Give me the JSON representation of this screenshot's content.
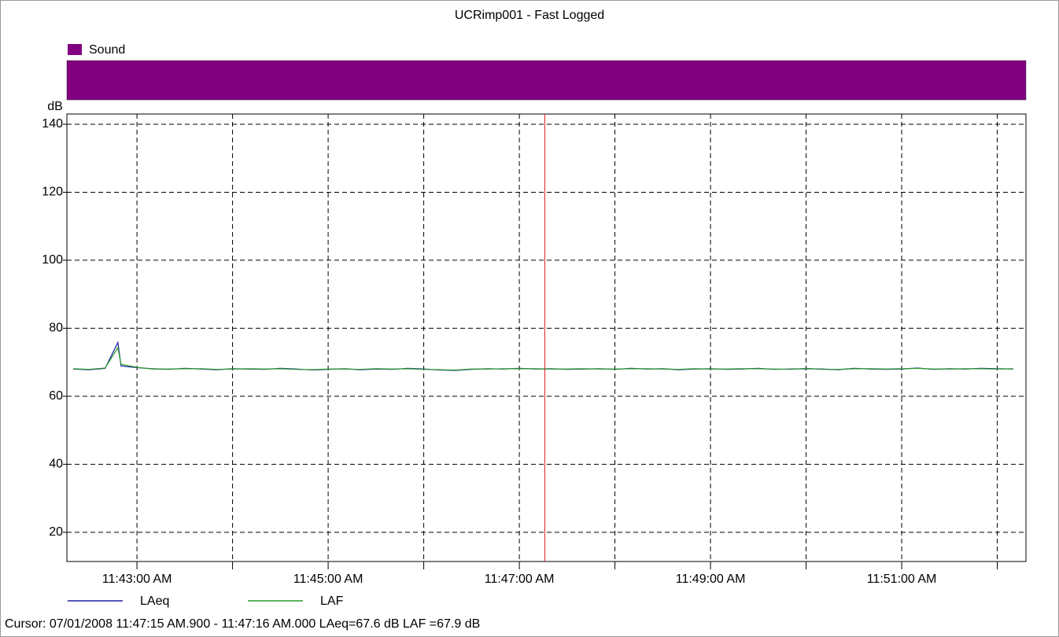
{
  "chart_data": {
    "type": "line",
    "title": "UCRimp001 - Fast Logged",
    "y_label": "dB",
    "x": [
      "11:42:20 AM",
      "11:42:30 AM",
      "11:42:40 AM",
      "11:42:48 AM",
      "11:42:50 AM",
      "11:43:00 AM",
      "11:43:10 AM",
      "11:43:20 AM",
      "11:43:30 AM",
      "11:43:40 AM",
      "11:43:50 AM",
      "11:44:00 AM",
      "11:44:10 AM",
      "11:44:20 AM",
      "11:44:30 AM",
      "11:44:40 AM",
      "11:44:50 AM",
      "11:45:00 AM",
      "11:45:10 AM",
      "11:45:20 AM",
      "11:45:30 AM",
      "11:45:40 AM",
      "11:45:50 AM",
      "11:46:00 AM",
      "11:46:10 AM",
      "11:46:20 AM",
      "11:46:30 AM",
      "11:46:40 AM",
      "11:46:50 AM",
      "11:47:00 AM",
      "11:47:10 AM",
      "11:47:20 AM",
      "11:47:30 AM",
      "11:47:40 AM",
      "11:47:50 AM",
      "11:48:00 AM",
      "11:48:10 AM",
      "11:48:20 AM",
      "11:48:30 AM",
      "11:48:40 AM",
      "11:48:50 AM",
      "11:49:00 AM",
      "11:49:10 AM",
      "11:49:20 AM",
      "11:49:30 AM",
      "11:49:40 AM",
      "11:49:50 AM",
      "11:50:00 AM",
      "11:50:10 AM",
      "11:50:20 AM",
      "11:50:30 AM",
      "11:50:40 AM",
      "11:50:50 AM",
      "11:51:00 AM",
      "11:51:10 AM",
      "11:51:20 AM",
      "11:51:30 AM",
      "11:51:40 AM",
      "11:51:50 AM",
      "11:52:00 AM",
      "11:52:10 AM"
    ],
    "series": [
      {
        "name": "LAeq",
        "color": "#1f1fa8",
        "values": [
          68.0,
          67.8,
          68.2,
          75.8,
          68.9,
          68.4,
          68.1,
          67.9,
          68.2,
          68.0,
          67.8,
          68.1,
          68.0,
          67.9,
          68.2,
          68.0,
          67.7,
          67.9,
          68.1,
          67.8,
          68.0,
          67.9,
          68.2,
          68.0,
          67.7,
          67.6,
          67.9,
          68.1,
          68.0,
          68.2,
          68.0,
          68.1,
          67.9,
          68.0,
          68.1,
          67.9,
          68.2,
          68.0,
          68.1,
          67.8,
          68.0,
          68.1,
          67.9,
          68.0,
          68.2,
          67.9,
          68.0,
          68.1,
          68.0,
          67.8,
          68.2,
          68.0,
          67.9,
          68.0,
          68.3,
          67.9,
          68.1,
          68.0,
          68.2,
          68.1,
          68.0
        ]
      },
      {
        "name": "LAF",
        "color": "#2a9a2a",
        "values": [
          68.1,
          67.9,
          68.3,
          74.3,
          69.4,
          68.5,
          68.0,
          68.0,
          68.1,
          68.1,
          67.9,
          68.0,
          68.1,
          68.0,
          68.1,
          67.9,
          67.8,
          68.0,
          68.0,
          67.9,
          68.1,
          68.0,
          68.1,
          67.9,
          67.8,
          67.7,
          68.0,
          68.0,
          68.1,
          68.1,
          68.1,
          68.0,
          68.0,
          68.1,
          68.0,
          68.0,
          68.1,
          68.1,
          68.0,
          67.9,
          68.1,
          68.0,
          68.0,
          68.1,
          68.1,
          68.0,
          67.9,
          68.2,
          67.9,
          67.9,
          68.1,
          68.1,
          68.0,
          68.1,
          68.2,
          68.0,
          68.0,
          68.1,
          68.1,
          68.0,
          68.1
        ]
      }
    ],
    "xlim": [
      "11:42:16 AM",
      "11:52:18 AM"
    ],
    "ylim": [
      11.4,
      143
    ],
    "xticks": [
      "11:43:00 AM",
      {
        "value": "11:44:00 AM",
        "label": null
      },
      "11:45:00 AM",
      {
        "value": "11:46:00 AM",
        "label": null
      },
      "11:47:00 AM",
      {
        "value": "11:48:00 AM",
        "label": null
      },
      "11:49:00 AM",
      {
        "value": "11:50:00 AM",
        "label": null
      },
      "11:51:00 AM",
      {
        "value": "11:52:00 AM",
        "label": null
      }
    ],
    "yticks": [
      20,
      40,
      60,
      80,
      100,
      120,
      140
    ],
    "grid": true,
    "bands": [
      {
        "name": "Sound",
        "color": "#800080",
        "x": [
          "11:42:16 AM",
          "11:52:18 AM"
        ]
      }
    ],
    "cursor": {
      "x": "11:47:16 AM",
      "color": "#e02020"
    },
    "footer": "Cursor: 07/01/2008 11:47:15 AM.900 - 11:47:16 AM.000  LAeq=67.6 dB  LAF =67.9 dB"
  }
}
